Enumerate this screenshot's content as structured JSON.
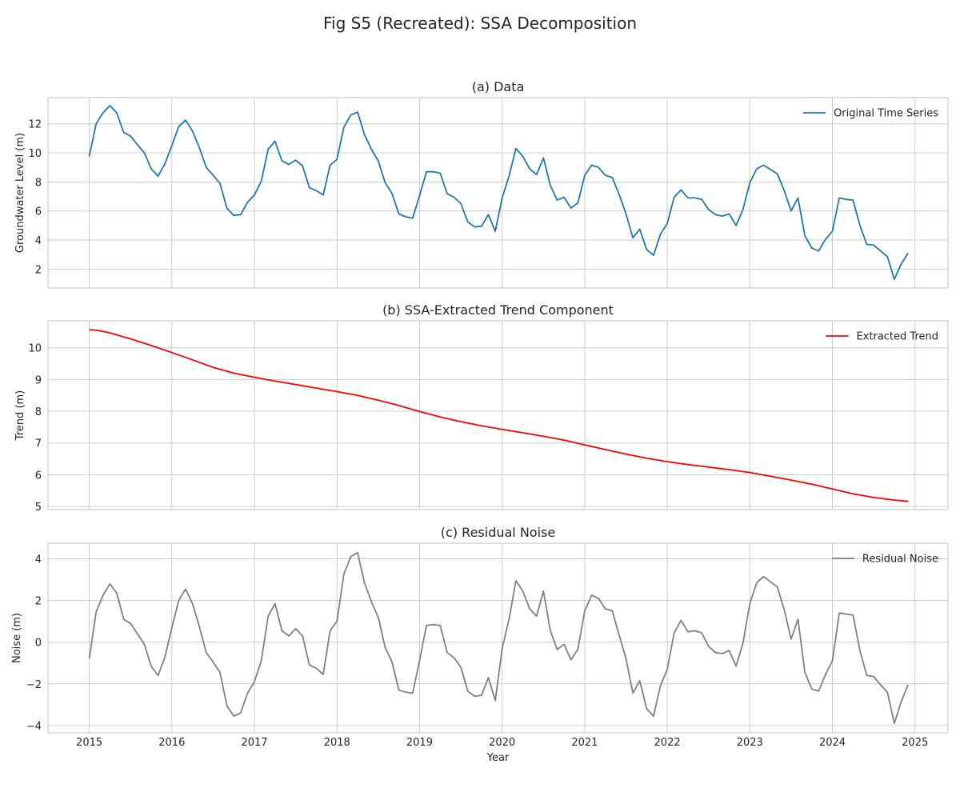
{
  "figure": {
    "title": "Fig S5 (Recreated): SSA Decomposition"
  },
  "chart_data": [
    {
      "type": "line",
      "title": "(a) Data",
      "xlabel": "",
      "ylabel": "Groundwater Level (m)",
      "xlim": [
        2014.5,
        2025.4
      ],
      "ylim": [
        0.7,
        13.8
      ],
      "xticks": [
        2015,
        2016,
        2017,
        2018,
        2019,
        2020,
        2021,
        2022,
        2023,
        2024,
        2025
      ],
      "yticks": [
        2,
        4,
        6,
        8,
        10,
        12
      ],
      "grid": true,
      "legend": "top-right",
      "series": [
        {
          "name": "Original Time Series",
          "color": "#1f77b4",
          "x_start": 2015,
          "x_step": 0.0833333,
          "values": [
            9.75,
            12.0,
            12.75,
            13.25,
            12.75,
            11.4,
            11.15,
            10.55,
            10.0,
            8.9,
            8.4,
            9.25,
            10.5,
            11.8,
            12.25,
            11.5,
            10.35,
            9.0,
            8.45,
            7.9,
            6.2,
            5.7,
            5.75,
            6.6,
            7.1,
            8.05,
            10.25,
            10.8,
            9.45,
            9.2,
            9.5,
            9.1,
            7.6,
            7.4,
            7.1,
            9.15,
            9.55,
            11.75,
            12.6,
            12.8,
            11.25,
            10.25,
            9.45,
            7.95,
            7.2,
            5.8,
            5.6,
            5.5,
            7.05,
            8.7,
            8.7,
            8.6,
            7.2,
            6.95,
            6.5,
            5.25,
            4.9,
            4.95,
            5.75,
            4.6,
            6.9,
            8.4,
            10.3,
            9.75,
            8.9,
            8.5,
            9.65,
            7.75,
            6.75,
            6.95,
            6.2,
            6.55,
            8.45,
            9.15,
            9.0,
            8.45,
            8.3,
            7.15,
            5.8,
            4.15,
            4.75,
            3.35,
            2.95,
            4.4,
            5.15,
            6.95,
            7.45,
            6.9,
            6.9,
            6.8,
            6.1,
            5.75,
            5.65,
            5.8,
            5.0,
            6.1,
            7.95,
            8.9,
            9.15,
            8.85,
            8.55,
            7.4,
            6.0,
            6.9,
            4.3,
            3.45,
            3.25,
            4.05,
            4.6,
            6.9,
            6.8,
            6.75,
            5.0,
            3.7,
            3.65,
            3.25,
            2.85,
            1.3,
            2.35,
            3.1
          ]
        }
      ]
    },
    {
      "type": "line",
      "title": "(b) SSA-Extracted Trend Component",
      "xlabel": "",
      "ylabel": "Trend (m)",
      "xlim": [
        2014.5,
        2025.4
      ],
      "ylim": [
        4.9,
        10.85
      ],
      "xticks": [
        2015,
        2016,
        2017,
        2018,
        2019,
        2020,
        2021,
        2022,
        2023,
        2024,
        2025
      ],
      "yticks": [
        5,
        6,
        7,
        8,
        9,
        10
      ],
      "grid": true,
      "legend": "top-right",
      "series": [
        {
          "name": "Extracted Trend",
          "color": "#ff0000",
          "x": [
            2015.0,
            2015.1,
            2015.25,
            2015.5,
            2015.75,
            2016.0,
            2016.25,
            2016.5,
            2016.75,
            2017.0,
            2017.25,
            2017.5,
            2017.75,
            2018.0,
            2018.25,
            2018.5,
            2018.75,
            2019.0,
            2019.25,
            2019.5,
            2019.75,
            2020.0,
            2020.25,
            2020.5,
            2020.75,
            2021.0,
            2021.25,
            2021.5,
            2021.75,
            2022.0,
            2022.25,
            2022.5,
            2022.75,
            2023.0,
            2023.25,
            2023.5,
            2023.75,
            2024.0,
            2024.25,
            2024.5,
            2024.75,
            2024.92
          ],
          "values": [
            10.57,
            10.55,
            10.47,
            10.28,
            10.07,
            9.85,
            9.62,
            9.38,
            9.2,
            9.07,
            8.95,
            8.84,
            8.73,
            8.62,
            8.5,
            8.35,
            8.18,
            7.99,
            7.82,
            7.67,
            7.54,
            7.43,
            7.32,
            7.21,
            7.09,
            6.94,
            6.79,
            6.65,
            6.52,
            6.41,
            6.32,
            6.24,
            6.16,
            6.07,
            5.95,
            5.83,
            5.7,
            5.55,
            5.4,
            5.28,
            5.2,
            5.16
          ]
        }
      ]
    },
    {
      "type": "line",
      "title": "(c) Residual Noise",
      "xlabel": "Year",
      "ylabel": "Noise (m)",
      "xlim": [
        2014.5,
        2025.4
      ],
      "ylim": [
        -4.35,
        4.75
      ],
      "xticks": [
        2015,
        2016,
        2017,
        2018,
        2019,
        2020,
        2021,
        2022,
        2023,
        2024,
        2025
      ],
      "yticks": [
        -4,
        -2,
        0,
        2,
        4
      ],
      "grid": true,
      "legend": "top-right",
      "series": [
        {
          "name": "Residual Noise",
          "color": "#808080",
          "x_start": 2015,
          "x_step": 0.0833333,
          "values": [
            -0.8,
            1.45,
            2.25,
            2.8,
            2.35,
            1.1,
            0.9,
            0.4,
            -0.1,
            -1.15,
            -1.6,
            -0.7,
            0.7,
            2.0,
            2.55,
            1.85,
            0.75,
            -0.5,
            -0.95,
            -1.45,
            -3.05,
            -3.55,
            -3.4,
            -2.45,
            -1.9,
            -0.9,
            1.25,
            1.85,
            0.55,
            0.3,
            0.65,
            0.3,
            -1.1,
            -1.25,
            -1.55,
            0.55,
            1.0,
            3.25,
            4.1,
            4.3,
            2.85,
            1.95,
            1.2,
            -0.25,
            -0.95,
            -2.3,
            -2.4,
            -2.45,
            -0.9,
            0.8,
            0.85,
            0.8,
            -0.5,
            -0.75,
            -1.2,
            -2.35,
            -2.6,
            -2.55,
            -1.7,
            -2.8,
            -0.3,
            1.1,
            2.95,
            2.45,
            1.6,
            1.25,
            2.45,
            0.55,
            -0.35,
            -0.1,
            -0.85,
            -0.35,
            1.5,
            2.25,
            2.1,
            1.6,
            1.5,
            0.35,
            -0.8,
            -2.45,
            -1.85,
            -3.2,
            -3.55,
            -2.1,
            -1.3,
            0.45,
            1.05,
            0.5,
            0.55,
            0.45,
            -0.2,
            -0.5,
            -0.55,
            -0.4,
            -1.15,
            -0.05,
            1.85,
            2.85,
            3.15,
            2.9,
            2.65,
            1.55,
            0.15,
            1.1,
            -1.45,
            -2.25,
            -2.35,
            -1.55,
            -0.9,
            1.4,
            1.35,
            1.3,
            -0.4,
            -1.6,
            -1.65,
            -2.05,
            -2.4,
            -3.9,
            -2.85,
            -2.05
          ]
        }
      ]
    }
  ]
}
